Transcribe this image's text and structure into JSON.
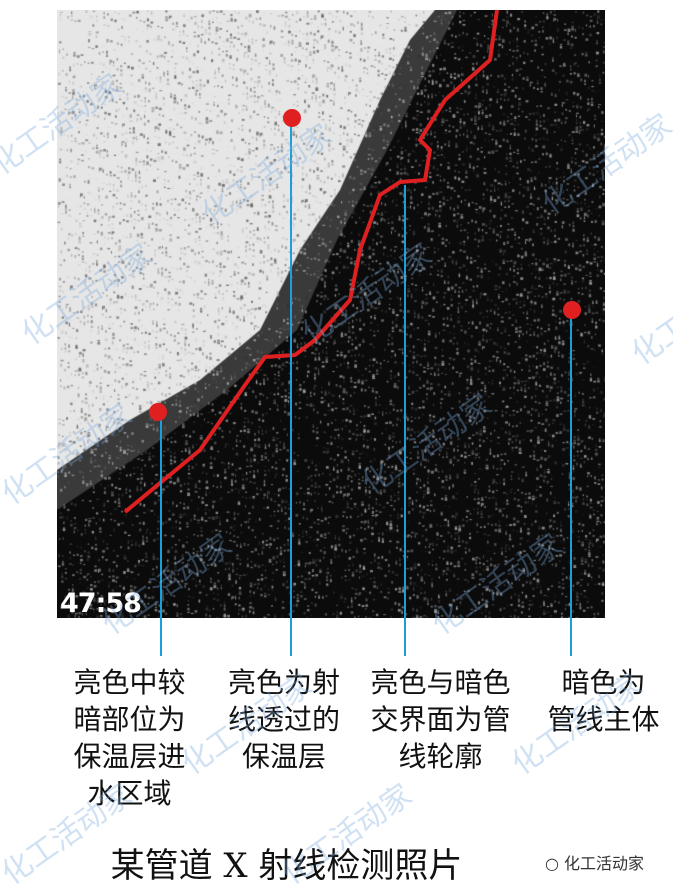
{
  "image": {
    "timestamp": "47:58",
    "colors": {
      "boundary_line": "#e02020",
      "marker": "#e02020",
      "leader_line": "#1aa0d8"
    }
  },
  "annotations": [
    {
      "text": "亮色中较\n暗部位为\n保温层进\n水区域"
    },
    {
      "text": "亮色为射\n线透过的\n保温层"
    },
    {
      "text": "亮色与暗色\n交界面为管\n线轮廓"
    },
    {
      "text": "暗色为\n管线主体"
    }
  ],
  "caption": "某管道 X 射线检测照片",
  "watermark": "化工活动家",
  "logo_text": "化工活动家"
}
